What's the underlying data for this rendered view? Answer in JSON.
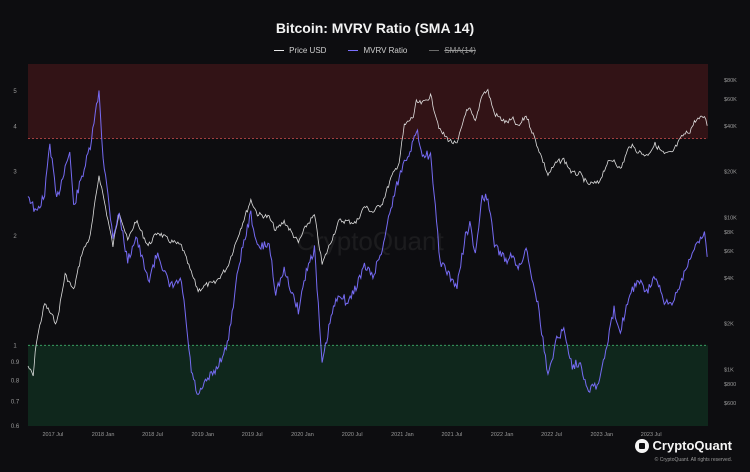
{
  "chart_data": {
    "type": "line",
    "title": "Bitcoin: MVRV Ratio (SMA 14)",
    "legend": [
      "Price USD",
      "MVRV Ratio",
      "SMA(14)"
    ],
    "x_ticks": [
      "2017 Jul",
      "2018 Jan",
      "2018 Jul",
      "2019 Jan",
      "2019 Jul",
      "2020 Jan",
      "2020 Jul",
      "2021 Jan",
      "2021 Jul",
      "2022 Jan",
      "2022 Jul",
      "2023 Jan",
      "2023 Jul"
    ],
    "left_axis": {
      "scale": "log",
      "ticks": [
        "0.6",
        "0.7",
        "0.8",
        "0.9",
        "1",
        "2",
        "3",
        "4",
        "5"
      ]
    },
    "right_axis": {
      "scale": "log",
      "ticks": [
        "$600",
        "$800",
        "$1K",
        "$2K",
        "$4K",
        "$6K",
        "$8K",
        "$10K",
        "$20K",
        "$40K",
        "$60K",
        "$80K"
      ]
    },
    "bands": {
      "upper_threshold": 3.7,
      "lower_threshold": 1
    },
    "series": [
      {
        "name": "MVRV Ratio",
        "color": "#7b70ff",
        "points": [
          [
            "2017-04-01",
            2.6
          ],
          [
            "2017-05-01",
            2.3
          ],
          [
            "2017-06-01",
            2.6
          ],
          [
            "2017-06-20",
            3.6
          ],
          [
            "2017-07-15",
            2.5
          ],
          [
            "2017-08-15",
            3.1
          ],
          [
            "2017-09-01",
            3.4
          ],
          [
            "2017-09-15",
            2.4
          ],
          [
            "2017-10-15",
            2.9
          ],
          [
            "2017-11-15",
            3.5
          ],
          [
            "2017-12-17",
            5.0
          ],
          [
            "2018-01-01",
            3.3
          ],
          [
            "2018-02-06",
            2.0
          ],
          [
            "2018-03-01",
            2.3
          ],
          [
            "2018-04-01",
            1.7
          ],
          [
            "2018-05-01",
            2.0
          ],
          [
            "2018-06-15",
            1.5
          ],
          [
            "2018-07-20",
            1.8
          ],
          [
            "2018-09-01",
            1.45
          ],
          [
            "2018-10-15",
            1.5
          ],
          [
            "2018-11-20",
            0.85
          ],
          [
            "2018-12-15",
            0.72
          ],
          [
            "2019-01-15",
            0.8
          ],
          [
            "2019-02-15",
            0.85
          ],
          [
            "2019-04-01",
            1.0
          ],
          [
            "2019-05-15",
            1.7
          ],
          [
            "2019-06-26",
            2.3
          ],
          [
            "2019-07-20",
            1.85
          ],
          [
            "2019-09-01",
            1.9
          ],
          [
            "2019-09-25",
            1.4
          ],
          [
            "2019-10-26",
            1.6
          ],
          [
            "2019-12-17",
            1.25
          ],
          [
            "2020-01-15",
            1.6
          ],
          [
            "2020-02-14",
            1.85
          ],
          [
            "2020-03-13",
            0.88
          ],
          [
            "2020-04-15",
            1.2
          ],
          [
            "2020-05-15",
            1.4
          ],
          [
            "2020-06-15",
            1.3
          ],
          [
            "2020-07-15",
            1.45
          ],
          [
            "2020-08-15",
            1.65
          ],
          [
            "2020-09-15",
            1.55
          ],
          [
            "2020-10-20",
            1.85
          ],
          [
            "2020-11-20",
            2.4
          ],
          [
            "2020-12-20",
            2.9
          ],
          [
            "2021-01-08",
            3.2
          ],
          [
            "2021-02-10",
            3.6
          ],
          [
            "2021-02-21",
            3.9
          ],
          [
            "2021-03-15",
            3.4
          ],
          [
            "2021-04-14",
            3.3
          ],
          [
            "2021-05-19",
            1.7
          ],
          [
            "2021-06-22",
            1.55
          ],
          [
            "2021-07-20",
            1.45
          ],
          [
            "2021-08-20",
            2.0
          ],
          [
            "2021-09-05",
            2.15
          ],
          [
            "2021-09-25",
            1.75
          ],
          [
            "2021-10-20",
            2.6
          ],
          [
            "2021-11-10",
            2.5
          ],
          [
            "2021-12-04",
            1.9
          ],
          [
            "2022-01-15",
            1.7
          ],
          [
            "2022-02-10",
            1.8
          ],
          [
            "2022-03-01",
            1.6
          ],
          [
            "2022-03-30",
            1.85
          ],
          [
            "2022-05-12",
            1.3
          ],
          [
            "2022-06-18",
            0.82
          ],
          [
            "2022-07-20",
            1.05
          ],
          [
            "2022-08-15",
            1.1
          ],
          [
            "2022-09-15",
            0.88
          ],
          [
            "2022-10-15",
            0.9
          ],
          [
            "2022-11-09",
            0.76
          ],
          [
            "2022-12-20",
            0.78
          ],
          [
            "2023-01-20",
            1.0
          ],
          [
            "2023-02-15",
            1.25
          ],
          [
            "2023-03-10",
            1.1
          ],
          [
            "2023-04-14",
            1.4
          ],
          [
            "2023-05-15",
            1.5
          ],
          [
            "2023-06-15",
            1.4
          ],
          [
            "2023-07-15",
            1.55
          ],
          [
            "2023-08-18",
            1.3
          ],
          [
            "2023-09-15",
            1.3
          ],
          [
            "2023-10-25",
            1.55
          ],
          [
            "2023-11-20",
            1.75
          ],
          [
            "2023-12-10",
            1.85
          ],
          [
            "2024-01-02",
            2.0
          ],
          [
            "2024-01-12",
            2.05
          ],
          [
            "2024-01-22",
            1.75
          ]
        ]
      },
      {
        "name": "Price USD",
        "color": "#e8e8e8",
        "points": [
          [
            "2017-04-01",
            1050
          ],
          [
            "2017-04-20",
            900
          ],
          [
            "2017-05-01",
            1500
          ],
          [
            "2017-06-01",
            2700
          ],
          [
            "2017-07-15",
            2000
          ],
          [
            "2017-08-15",
            4200
          ],
          [
            "2017-09-15",
            3300
          ],
          [
            "2017-10-15",
            5800
          ],
          [
            "2017-11-15",
            7500
          ],
          [
            "2017-12-17",
            19000
          ],
          [
            "2018-01-01",
            14000
          ],
          [
            "2018-02-06",
            6500
          ],
          [
            "2018-03-01",
            11000
          ],
          [
            "2018-04-01",
            7000
          ],
          [
            "2018-05-01",
            9500
          ],
          [
            "2018-06-15",
            6500
          ],
          [
            "2018-07-20",
            8000
          ],
          [
            "2018-09-01",
            7000
          ],
          [
            "2018-10-15",
            6500
          ],
          [
            "2018-11-20",
            4300
          ],
          [
            "2018-12-15",
            3300
          ],
          [
            "2019-01-15",
            3600
          ],
          [
            "2019-02-15",
            3700
          ],
          [
            "2019-04-01",
            4700
          ],
          [
            "2019-05-15",
            8000
          ],
          [
            "2019-06-26",
            13000
          ],
          [
            "2019-07-20",
            10500
          ],
          [
            "2019-09-01",
            10000
          ],
          [
            "2019-09-25",
            8200
          ],
          [
            "2019-10-26",
            9400
          ],
          [
            "2019-12-17",
            6800
          ],
          [
            "2020-01-15",
            8800
          ],
          [
            "2020-02-14",
            10300
          ],
          [
            "2020-03-13",
            4900
          ],
          [
            "2020-04-15",
            7000
          ],
          [
            "2020-05-15",
            9500
          ],
          [
            "2020-06-15",
            9400
          ],
          [
            "2020-07-15",
            9200
          ],
          [
            "2020-08-15",
            11800
          ],
          [
            "2020-09-15",
            10800
          ],
          [
            "2020-10-20",
            12500
          ],
          [
            "2020-11-20",
            18000
          ],
          [
            "2020-12-20",
            23000
          ],
          [
            "2021-01-08",
            40000
          ],
          [
            "2021-02-10",
            46000
          ],
          [
            "2021-02-21",
            57000
          ],
          [
            "2021-03-15",
            56000
          ],
          [
            "2021-04-14",
            63000
          ],
          [
            "2021-05-19",
            37000
          ],
          [
            "2021-06-22",
            32000
          ],
          [
            "2021-07-20",
            30000
          ],
          [
            "2021-08-20",
            49000
          ],
          [
            "2021-09-05",
            51000
          ],
          [
            "2021-09-25",
            42000
          ],
          [
            "2021-10-20",
            65000
          ],
          [
            "2021-11-10",
            68000
          ],
          [
            "2021-12-04",
            48000
          ],
          [
            "2022-01-15",
            42000
          ],
          [
            "2022-02-10",
            44000
          ],
          [
            "2022-03-01",
            39000
          ],
          [
            "2022-03-30",
            47000
          ],
          [
            "2022-05-12",
            29000
          ],
          [
            "2022-06-18",
            19000
          ],
          [
            "2022-07-20",
            23000
          ],
          [
            "2022-08-15",
            24000
          ],
          [
            "2022-09-15",
            19500
          ],
          [
            "2022-10-15",
            19200
          ],
          [
            "2022-11-09",
            16500
          ],
          [
            "2022-12-20",
            16800
          ],
          [
            "2023-01-20",
            22500
          ],
          [
            "2023-02-15",
            24000
          ],
          [
            "2023-03-10",
            20500
          ],
          [
            "2023-04-14",
            30000
          ],
          [
            "2023-05-15",
            27000
          ],
          [
            "2023-06-15",
            25500
          ],
          [
            "2023-07-15",
            30200
          ],
          [
            "2023-08-18",
            26000
          ],
          [
            "2023-09-15",
            26500
          ],
          [
            "2023-10-25",
            34500
          ],
          [
            "2023-11-20",
            37000
          ],
          [
            "2023-12-10",
            43500
          ],
          [
            "2024-01-02",
            45000
          ],
          [
            "2024-01-12",
            46500
          ],
          [
            "2024-01-22",
            40000
          ]
        ]
      }
    ]
  },
  "footer": {
    "brand": "CryptoQuant",
    "copyright": "© CryptoQuant. All rights reserved."
  }
}
